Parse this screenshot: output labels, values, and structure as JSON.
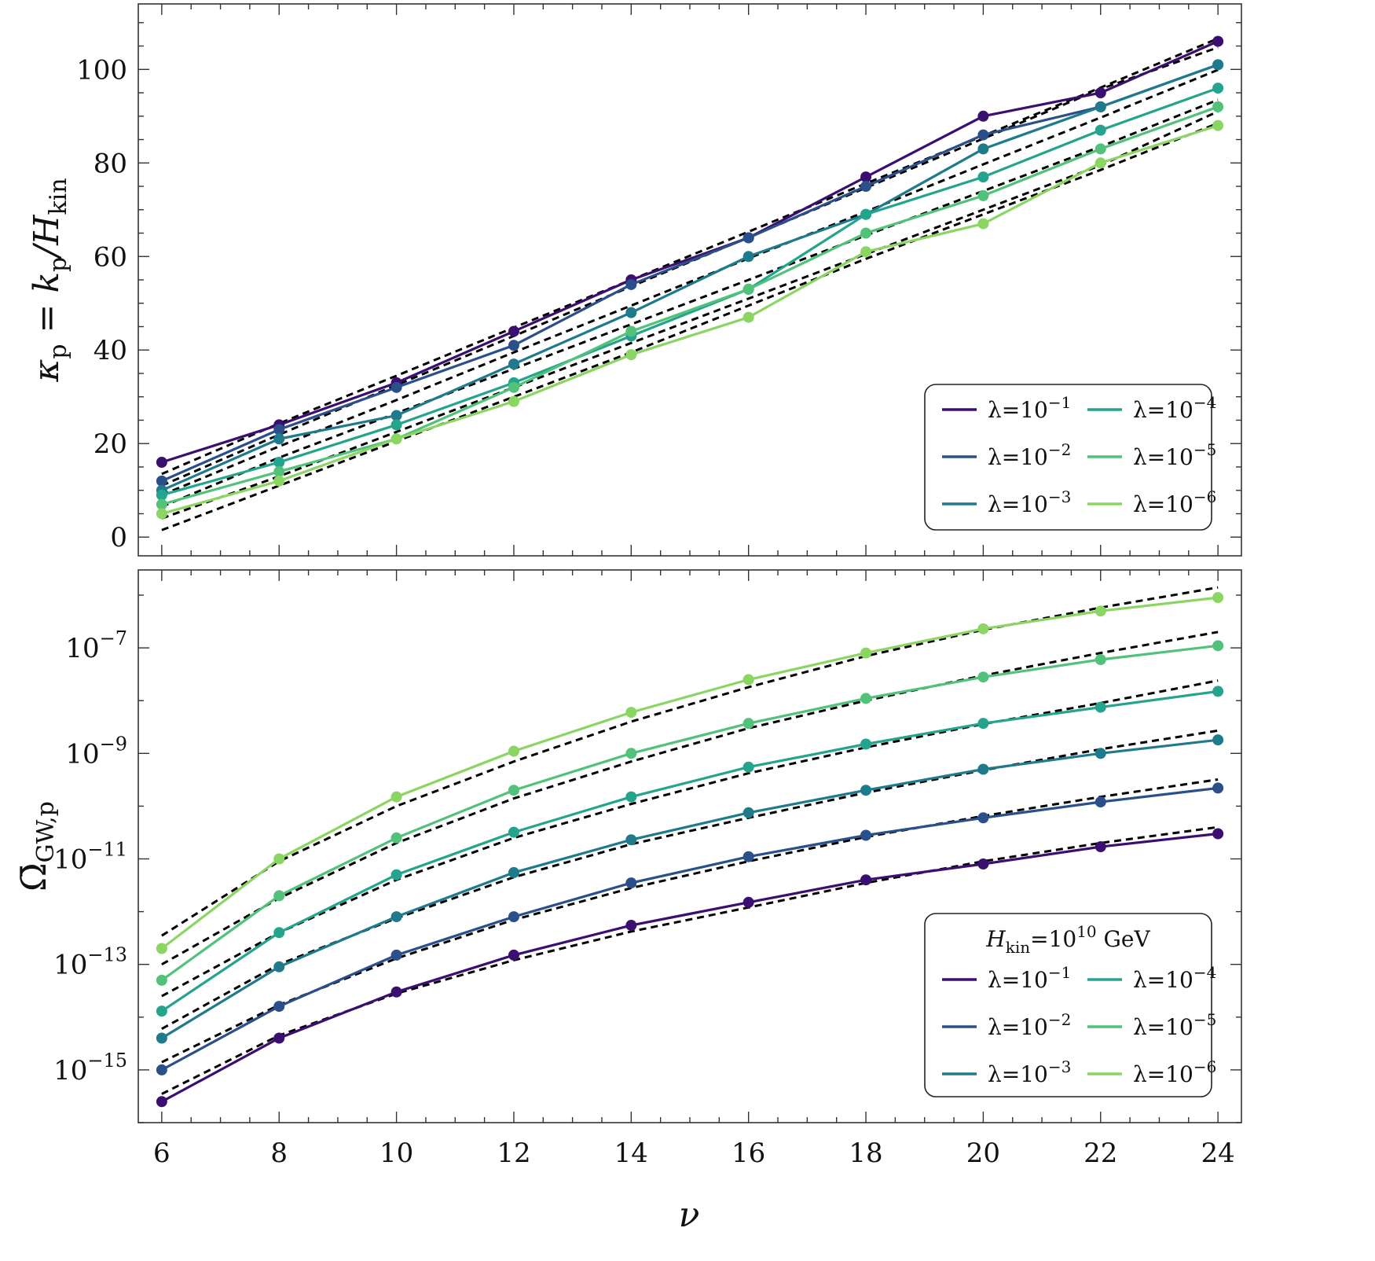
{
  "figure": {
    "xlabel": "ν"
  },
  "chart_data": [
    {
      "type": "line",
      "title": "",
      "ylabel": "κp = kp / Hkin",
      "ylabel_parts": {
        "kappa": "κ",
        "p": "p",
        "eq": " = k",
        "sub_p": "p",
        "slash": "/H",
        "sub_kin": "kin"
      },
      "yscale": "linear",
      "xlim": [
        5.6,
        24.4
      ],
      "ylim": [
        -4,
        114
      ],
      "x": [
        6,
        8,
        10,
        12,
        14,
        16,
        18,
        20,
        22,
        24
      ],
      "x_ticks": [
        "6",
        "8",
        "10",
        "12",
        "14",
        "16",
        "18",
        "20",
        "22",
        "24"
      ],
      "y_ticks": [
        "0",
        "20",
        "40",
        "60",
        "80",
        "100"
      ],
      "y_tick_values": [
        0,
        20,
        40,
        60,
        80,
        100
      ],
      "legend": {
        "position": "bottom-right",
        "title": ""
      },
      "series": [
        {
          "name": "λ=10−1",
          "base": "λ=10",
          "exp": "−1",
          "color": "#3b0f70",
          "values": [
            16,
            24,
            33,
            44,
            55,
            64,
            77,
            90,
            95,
            106
          ],
          "fit": [
            13.5,
            24.3,
            34.5,
            44.8,
            55.0,
            65.3,
            75.6,
            85.8,
            96.1,
            106.6
          ]
        },
        {
          "name": "λ=10−2",
          "base": "λ=10",
          "exp": "−2",
          "color": "#2a4f8a",
          "values": [
            12,
            23,
            32,
            41,
            54,
            64,
            75,
            86,
            92,
            101
          ],
          "fit": [
            11.0,
            21.9,
            32.5,
            43.0,
            53.6,
            64.1,
            74.7,
            85.2,
            95.8,
            104.7
          ]
        },
        {
          "name": "λ=10−3",
          "base": "λ=10",
          "exp": "−3",
          "color": "#1f7a8c",
          "values": [
            10,
            21,
            26,
            37,
            48,
            60,
            69,
            83,
            92,
            101
          ],
          "fit": [
            9.0,
            19.4,
            29.3,
            39.5,
            49.5,
            59.6,
            69.6,
            79.7,
            89.7,
            99.9
          ]
        },
        {
          "name": "λ=10−4",
          "base": "λ=10",
          "exp": "−4",
          "color": "#25a48d",
          "values": [
            9,
            16,
            24,
            33,
            43,
            53,
            69,
            77,
            87,
            96
          ],
          "fit": [
            6.5,
            17.0,
            26.5,
            36.0,
            45.5,
            55.0,
            64.5,
            74.0,
            83.5,
            93.5
          ]
        },
        {
          "name": "λ=10−5",
          "base": "λ=10",
          "exp": "−5",
          "color": "#52c27a",
          "values": [
            7,
            14,
            21,
            32,
            44,
            53,
            65,
            73,
            83,
            92
          ],
          "fit": [
            4.0,
            13.0,
            22.5,
            32.0,
            41.5,
            51.0,
            60.5,
            70.0,
            79.5,
            91.0
          ]
        },
        {
          "name": "λ=10−6",
          "base": "λ=10",
          "exp": "−6",
          "color": "#8bd563",
          "values": [
            5,
            12,
            21,
            29,
            39,
            47,
            61,
            67,
            80,
            88
          ],
          "fit": [
            1.5,
            11.0,
            20.5,
            30.0,
            39.5,
            49.5,
            59.5,
            69.0,
            78.5,
            88.5
          ]
        }
      ]
    },
    {
      "type": "line",
      "title": "",
      "ylabel": "Ω̄GW,p",
      "ylabel_parts": {
        "omega": "Ω̄",
        "sub": "GW,p"
      },
      "yscale": "log",
      "xlim": [
        5.6,
        24.4
      ],
      "ylim": [
        1e-16,
        3e-06
      ],
      "x": [
        6,
        8,
        10,
        12,
        14,
        16,
        18,
        20,
        22,
        24
      ],
      "x_ticks": [
        "6",
        "8",
        "10",
        "12",
        "14",
        "16",
        "18",
        "20",
        "22",
        "24"
      ],
      "y_ticks": [
        {
          "base": "10",
          "exp": "−7"
        },
        {
          "base": "10",
          "exp": "−9"
        },
        {
          "base": "10",
          "exp": "−11"
        },
        {
          "base": "10",
          "exp": "−13"
        },
        {
          "base": "10",
          "exp": "−15"
        }
      ],
      "y_tick_values": [
        1e-07,
        1e-09,
        1e-11,
        1e-13,
        1e-15
      ],
      "legend": {
        "position": "bottom-right",
        "title": "Hkin=1010 GeV",
        "title_parts": {
          "h": "H",
          "kin": "kin",
          "eq": "=10",
          "exp": "10",
          "unit": " GeV"
        }
      },
      "series": [
        {
          "name": "λ=10−1",
          "base": "λ=10",
          "exp": "−1",
          "color": "#3b0f70",
          "values": [
            2.5e-16,
            4e-15,
            3e-14,
            1.5e-13,
            5.5e-13,
            1.5e-12,
            4e-12,
            8e-12,
            1.7e-11,
            3e-11
          ],
          "fit": [
            3.5e-16,
            4.5e-15,
            2.8e-14,
            1.2e-13,
            4.2e-13,
            1.2e-12,
            3.5e-12,
            9e-12,
            2e-11,
            4e-11
          ]
        },
        {
          "name": "λ=10−2",
          "base": "λ=10",
          "exp": "−2",
          "color": "#2a4f8a",
          "values": [
            1e-15,
            1.6e-14,
            1.5e-13,
            8e-13,
            3.5e-12,
            1.1e-11,
            2.8e-11,
            6e-11,
            1.2e-10,
            2.2e-10
          ],
          "fit": [
            1.4e-15,
            1.7e-14,
            1.3e-13,
            7e-13,
            2.8e-12,
            9e-12,
            2.6e-11,
            6.5e-11,
            1.5e-10,
            3.2e-10
          ]
        },
        {
          "name": "λ=10−3",
          "base": "λ=10",
          "exp": "−3",
          "color": "#1f7a8c",
          "values": [
            4e-15,
            9e-14,
            8e-13,
            5.5e-12,
            2.3e-11,
            7.5e-11,
            2e-10,
            5e-10,
            1e-09,
            1.8e-09
          ],
          "fit": [
            6e-15,
            1e-13,
            7.5e-13,
            4.5e-12,
            1.9e-11,
            6e-11,
            1.8e-10,
            4.8e-10,
            1.2e-09,
            2.7e-09
          ]
        },
        {
          "name": "λ=10−4",
          "base": "λ=10",
          "exp": "−4",
          "color": "#25a48d",
          "values": [
            1.3e-14,
            4e-13,
            5e-12,
            3.2e-11,
            1.5e-10,
            5.5e-10,
            1.5e-09,
            3.7e-09,
            7.5e-09,
            1.5e-08
          ],
          "fit": [
            2.5e-14,
            4e-13,
            4e-12,
            2.5e-11,
            1.1e-10,
            4.2e-10,
            1.3e-09,
            3.6e-09,
            9e-09,
            2.4e-08
          ]
        },
        {
          "name": "λ=10−5",
          "base": "λ=10",
          "exp": "−5",
          "color": "#52c27a",
          "values": [
            5e-14,
            2e-12,
            2.5e-11,
            2e-10,
            1e-09,
            3.7e-09,
            1.1e-08,
            2.8e-08,
            6e-08,
            1.1e-07
          ],
          "fit": [
            1e-13,
            1.8e-12,
            2e-11,
            1.4e-10,
            7e-10,
            3e-09,
            1e-08,
            3e-08,
            8e-08,
            2e-07
          ]
        },
        {
          "name": "λ=10−6",
          "base": "λ=10",
          "exp": "−6",
          "color": "#8bd563",
          "values": [
            2e-13,
            1e-11,
            1.5e-10,
            1.1e-09,
            6e-09,
            2.5e-08,
            8e-08,
            2.3e-07,
            5e-07,
            9e-07
          ],
          "fit": [
            3.5e-13,
            9e-12,
            1e-10,
            7e-10,
            4e-09,
            1.8e-08,
            7e-08,
            2.2e-07,
            5.8e-07,
            1.4e-06
          ]
        }
      ]
    }
  ]
}
